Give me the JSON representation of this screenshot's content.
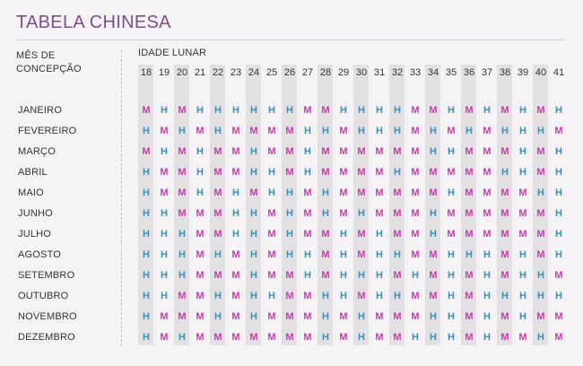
{
  "title": "TABELA CHINESA",
  "row_header_line1": "MÊS DE",
  "row_header_line2": "CONCEPÇÃO",
  "col_header": "IDADE LUNAR",
  "colors": {
    "M": "#c23fa8",
    "H": "#3d8fb8",
    "title": "#7b4f8c"
  },
  "ages": [
    "18",
    "19",
    "20",
    "21",
    "22",
    "23",
    "24",
    "25",
    "26",
    "27",
    "28",
    "29",
    "30",
    "31",
    "32",
    "33",
    "34",
    "35",
    "36",
    "37",
    "38",
    "39",
    "40",
    "41"
  ],
  "months": [
    {
      "name": "JANEIRO",
      "values": "MHMHHHHHHMMHHHHMMHMHMHMH"
    },
    {
      "name": "FEVEREIRO",
      "values": "HMHMHMMMMHHMHHHMHMHMHHHM"
    },
    {
      "name": "MARÇO",
      "values": "MHMHMMHMMHMMMMMMHHMMMHMH"
    },
    {
      "name": "ABRIL",
      "values": "HMMHMMHHMHMMMMHMMMMMHHMH"
    },
    {
      "name": "MAIO",
      "values": "HMMHMHMHHMHMMMMMMHMMMMHH"
    },
    {
      "name": "JUNHO",
      "values": "HHMMMHHMHMHMHMMMHMMMMMMH"
    },
    {
      "name": "JULHO",
      "values": "HHHMMHHMHMMHMHMMHMMMMMMH"
    },
    {
      "name": "AGOSTO",
      "values": "HHHMHMHMHHMHMHHMMHHHMHMH"
    },
    {
      "name": "SETEMBRO",
      "values": "HHHMMMHMMHMHHHMHMHMHMHHM"
    },
    {
      "name": "OUTUBRO",
      "values": "HHMMHMHHMMHHMHHMMHMHHHHH"
    },
    {
      "name": "NOVEMBRO",
      "values": "HMMMHMHMMMHMHMMMHHMHMHMM"
    },
    {
      "name": "DEZEMBRO",
      "values": "HMHMMMMMMMHMHMMHHHMHMMHM"
    }
  ]
}
